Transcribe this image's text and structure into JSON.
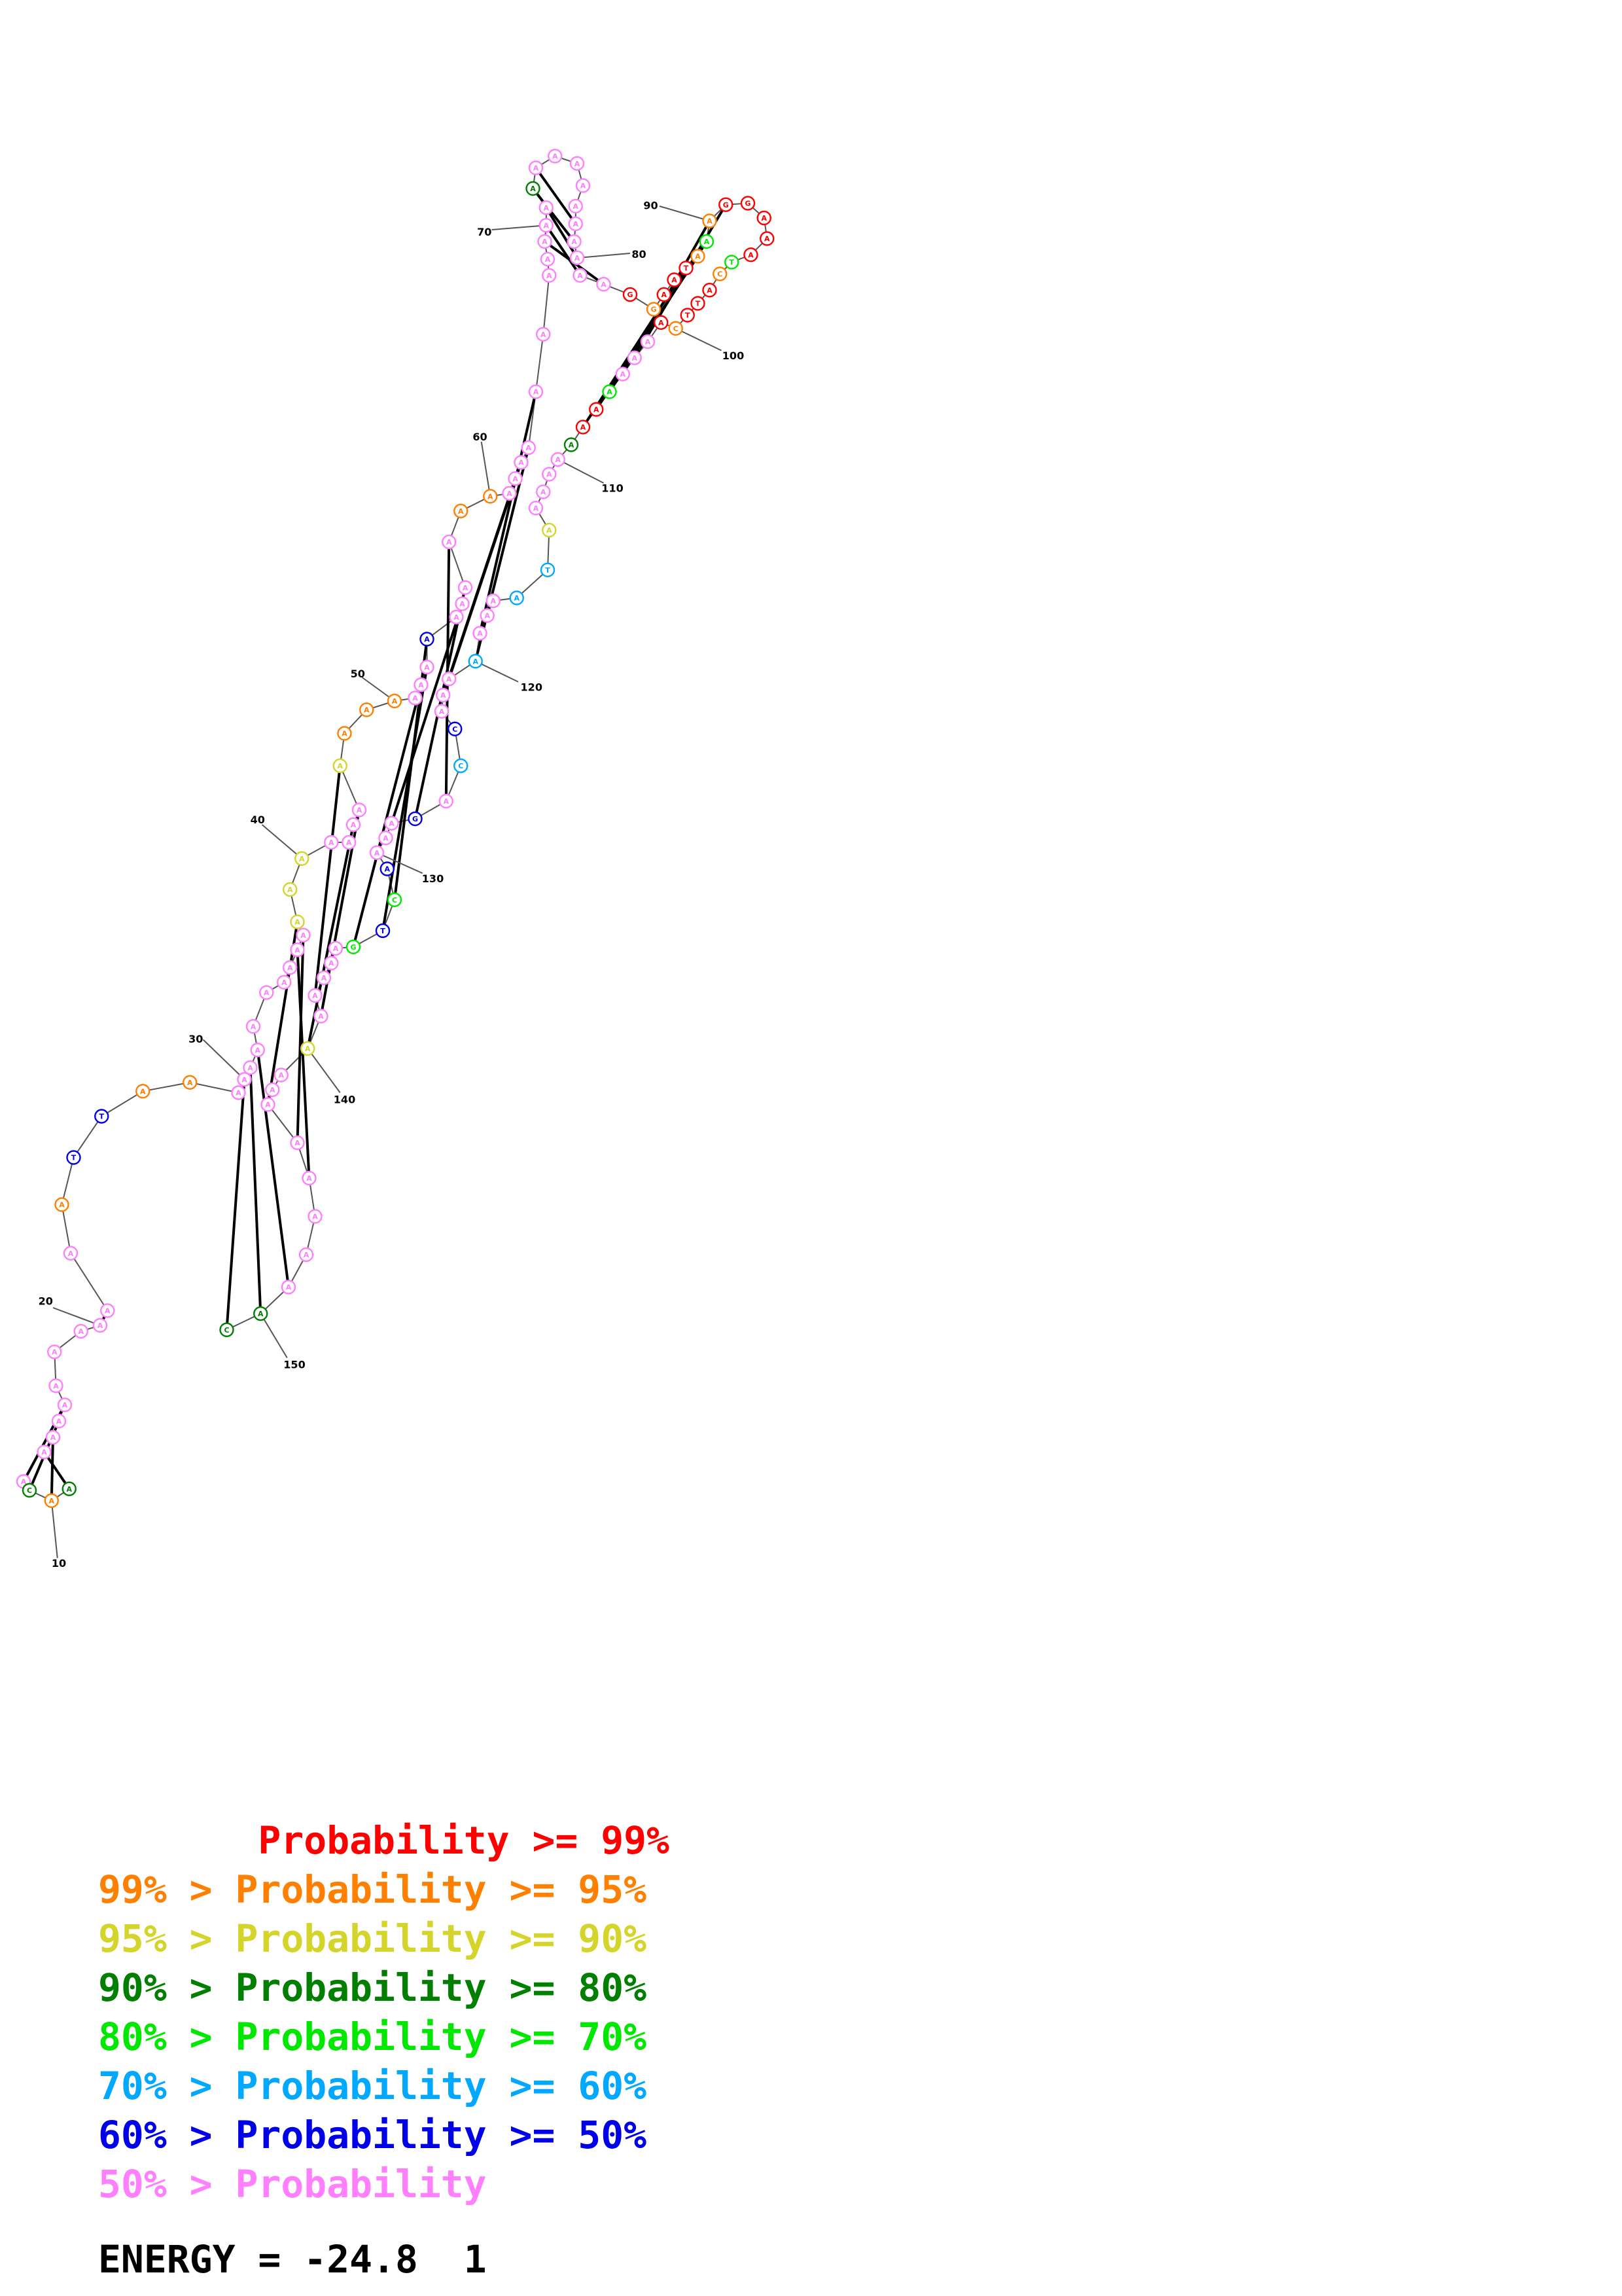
{
  "colors": {
    "red": "#ff0000",
    "orange": "#ff7f00",
    "yellow": "#d4d42a",
    "dark_green": "#007f00",
    "green": "#00e800",
    "light_blue": "#00a8ff",
    "blue": "#0000e8",
    "pink": "#ff7fff"
  },
  "position_labels": [
    "10",
    "20",
    "30",
    "40",
    "50",
    "60",
    "70",
    "80",
    "90",
    "100",
    "110",
    "120",
    "130",
    "140",
    "150"
  ],
  "nucleotides": {
    "C": "C",
    "A": "A",
    "T": "T",
    "G": "G"
  },
  "legend": [
    {
      "text": "       Probability >= 99%",
      "color_key": "red"
    },
    {
      "text": "99% > Probability >= 95%",
      "color_key": "orange"
    },
    {
      "text": "95% > Probability >= 90%",
      "color_key": "yellow"
    },
    {
      "text": "90% > Probability >= 80%",
      "color_key": "dark_green"
    },
    {
      "text": "80% > Probability >= 70%",
      "color_key": "green"
    },
    {
      "text": "70% > Probability >= 60%",
      "color_key": "light_blue"
    },
    {
      "text": "60% > Probability >= 50%",
      "color_key": "blue"
    },
    {
      "text": "50% > Probability",
      "color_key": "pink"
    }
  ],
  "energy_text": "ENERGY = -24.8  1"
}
